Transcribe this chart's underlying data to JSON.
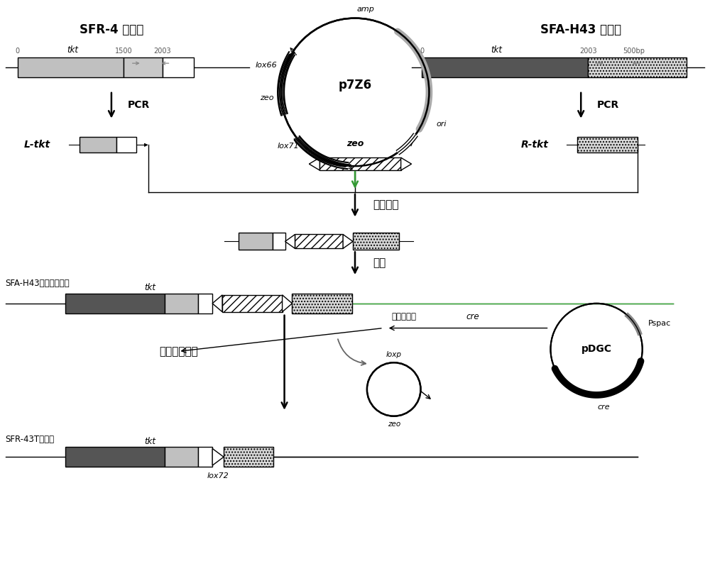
{
  "bg_color": "#ffffff",
  "sfr4_label": "SFR-4 基因组",
  "sfah43_label": "SFA-H43 基因组",
  "ltkt_label": "L-tkt",
  "rtkt_label": "R-tkt",
  "pcr_label": "PCR",
  "plasmid_label": "p7Z6",
  "amp_label": "amp",
  "zeo_label_plasmid": "zeo",
  "ori_label": "ori",
  "lox66_label": "lox66",
  "lox71_label": "lox71",
  "zeo_fragment_label": "zeo",
  "fragment_fusion_label": "片段融合",
  "transform_label": "转化",
  "sfah43_transform_label": "SFA-H43转化株基因组",
  "tkt_label": "tkt",
  "transform_cre_label": "转化、表达",
  "cre_italic": "cre",
  "delete_label": "删除抗性基因",
  "loxp_label": "loxp",
  "zeo_small_label": "zeo",
  "sfr43t_label": "SFR-43T基因组",
  "lox72_label": "lox72",
  "pdgc_label": "pDGC",
  "pspac_label": "Pspac",
  "cre_label": "cre",
  "marker_0": "0",
  "marker_1500": "1500",
  "marker_2003_sfr4": "2003",
  "marker_0_sfah43": "0",
  "marker_2003_sfah43": "2003",
  "marker_500bp": "500bp"
}
